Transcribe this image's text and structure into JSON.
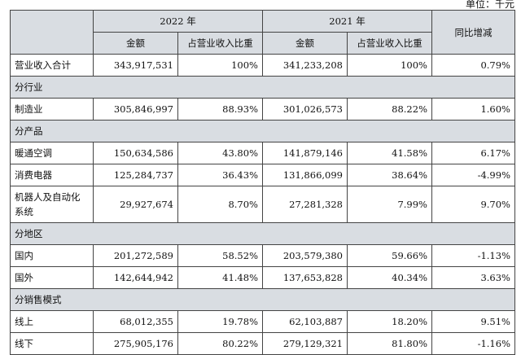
{
  "unit_label": "单位：千元",
  "header": {
    "year_2022": "2022 年",
    "year_2021": "2021 年",
    "amount": "金额",
    "share": "占营业收入比重",
    "yoy": "同比增减"
  },
  "total": {
    "label": "营业收入合计",
    "amt_2022": "343,917,531",
    "share_2022": "100%",
    "amt_2021": "341,233,208",
    "share_2021": "100%",
    "yoy": "0.79%"
  },
  "sections": [
    {
      "title": "分行业",
      "rows": [
        {
          "label": "制造业",
          "amt_2022": "305,846,997",
          "share_2022": "88.93%",
          "amt_2021": "301,026,573",
          "share_2021": "88.22%",
          "yoy": "1.60%"
        }
      ]
    },
    {
      "title": "分产品",
      "rows": [
        {
          "label": "暖通空调",
          "amt_2022": "150,634,586",
          "share_2022": "43.80%",
          "amt_2021": "141,879,146",
          "share_2021": "41.58%",
          "yoy": "6.17%"
        },
        {
          "label": "消费电器",
          "amt_2022": "125,284,737",
          "share_2022": "36.43%",
          "amt_2021": "131,866,099",
          "share_2021": "38.64%",
          "yoy": "-4.99%"
        },
        {
          "label": "机器人及自动化系统",
          "amt_2022": "29,927,674",
          "share_2022": "8.70%",
          "amt_2021": "27,281,328",
          "share_2021": "7.99%",
          "yoy": "9.70%"
        }
      ]
    },
    {
      "title": "分地区",
      "rows": [
        {
          "label": "国内",
          "amt_2022": "201,272,589",
          "share_2022": "58.52%",
          "amt_2021": "203,579,380",
          "share_2021": "59.66%",
          "yoy": "-1.13%"
        },
        {
          "label": "国外",
          "amt_2022": "142,644,942",
          "share_2022": "41.48%",
          "amt_2021": "137,653,828",
          "share_2021": "40.34%",
          "yoy": "3.63%"
        }
      ]
    },
    {
      "title": "分销售模式",
      "rows": [
        {
          "label": "线上",
          "amt_2022": "68,012,355",
          "share_2022": "19.78%",
          "amt_2021": "62,103,887",
          "share_2021": "18.20%",
          "yoy": "9.51%"
        },
        {
          "label": "线下",
          "amt_2022": "275,905,176",
          "share_2022": "80.22%",
          "amt_2021": "279,129,321",
          "share_2021": "81.80%",
          "yoy": "-1.16%"
        }
      ]
    }
  ]
}
